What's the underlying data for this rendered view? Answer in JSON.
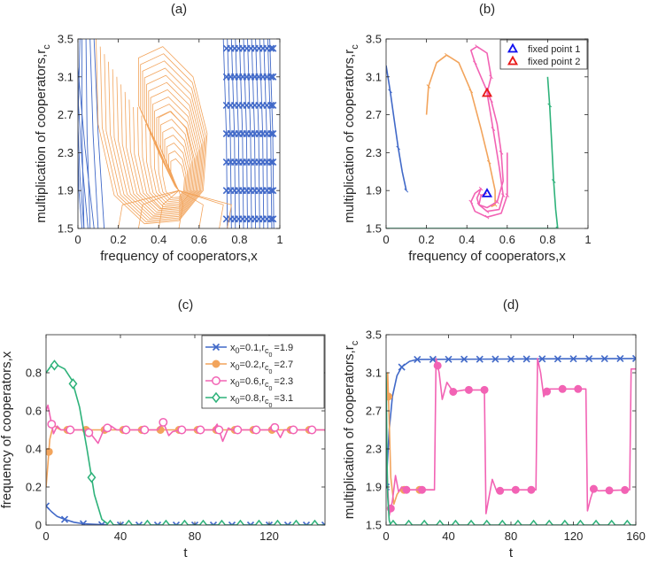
{
  "colors": {
    "blue": "#4169c8",
    "orange": "#f2a45c",
    "pink": "#f263b4",
    "green": "#2eb27a",
    "fp1": "#1010f0",
    "fp2": "#e81818"
  },
  "chart_data": [
    {
      "id": "a",
      "type": "line",
      "title": "(a)",
      "xlabel": "frequency of cooperators,x",
      "ylabel_main": "multiplication of cooperators,r",
      "ylabel_sub": "c",
      "xlim": [
        0,
        1
      ],
      "ylim": [
        1.5,
        3.5
      ],
      "xticks": [
        "0",
        "0.2",
        "0.4",
        "0.6",
        "0.8",
        "1"
      ],
      "xtick_values": [
        0,
        0.2,
        0.4,
        0.6,
        0.8,
        1
      ],
      "yticks": [
        "1.5",
        "1.9",
        "2.3",
        "2.7",
        "3.1",
        "3.5"
      ],
      "ytick_values": [
        1.5,
        1.9,
        2.3,
        2.7,
        3.1,
        3.5
      ],
      "blue_left_streamlines": [
        [
          0.0,
          3.5,
          0.0,
          2.0
        ],
        [
          0.01,
          3.5,
          0.0,
          1.7
        ],
        [
          0.02,
          3.5,
          0.03,
          1.5
        ],
        [
          0.04,
          3.5,
          0.06,
          1.5
        ],
        [
          0.06,
          3.5,
          0.1,
          1.5
        ],
        [
          0.0,
          3.2,
          0.08,
          1.5
        ],
        [
          0.0,
          2.9,
          0.05,
          1.5
        ],
        [
          0.0,
          2.6,
          0.03,
          1.5
        ],
        [
          0.08,
          3.5,
          0.13,
          1.5
        ],
        [
          0.0,
          2.3,
          0.02,
          1.5
        ]
      ],
      "blue_right_streamlines": [
        0.74,
        0.76,
        0.78,
        0.8,
        0.82,
        0.84,
        0.86,
        0.88,
        0.9,
        0.92,
        0.94,
        0.96,
        0.97
      ],
      "orange_base_loop": [
        [
          0.09,
          3.5
        ],
        [
          0.1,
          2.6
        ],
        [
          0.18,
          1.85
        ],
        [
          0.33,
          1.55
        ],
        [
          0.5,
          1.58
        ],
        [
          0.62,
          1.9
        ],
        [
          0.64,
          2.5
        ],
        [
          0.57,
          3.1
        ],
        [
          0.42,
          3.42
        ],
        [
          0.3,
          3.3
        ],
        [
          0.3,
          2.8
        ],
        [
          0.4,
          2.3
        ],
        [
          0.48,
          1.95
        ],
        [
          0.5,
          1.9
        ]
      ],
      "orange_loop_center": [
        0.5,
        1.9
      ],
      "orange_loop_scales": [
        1.0,
        0.95,
        0.9,
        0.85,
        0.8,
        0.75,
        0.7,
        0.65,
        0.6,
        0.55,
        0.5,
        0.45,
        0.4,
        0.35,
        0.3,
        0.25,
        0.2
      ],
      "orange_bottom_lines": [
        0.2,
        0.3,
        0.4,
        0.5,
        0.6,
        0.7,
        0.74
      ]
    },
    {
      "id": "b",
      "type": "line",
      "title": "(b)",
      "xlabel": "frequency of cooperators,x",
      "ylabel_main": "multiplication of cooperators,r",
      "ylabel_sub": "c",
      "xlim": [
        0,
        1
      ],
      "ylim": [
        1.5,
        3.5
      ],
      "xticks": [
        "0",
        "0.2",
        "0.4",
        "0.6",
        "0.8",
        "1"
      ],
      "xtick_values": [
        0,
        0.2,
        0.4,
        0.6,
        0.8,
        1
      ],
      "yticks": [
        "1.5",
        "1.9",
        "2.3",
        "2.7",
        "3.1",
        "3.5"
      ],
      "ytick_values": [
        1.5,
        1.9,
        2.3,
        2.7,
        3.1,
        3.5
      ],
      "series": [
        {
          "color": "blue",
          "points": [
            [
              0.0,
              3.22
            ],
            [
              0.02,
              2.95
            ],
            [
              0.04,
              2.65
            ],
            [
              0.06,
              2.35
            ],
            [
              0.08,
              2.1
            ],
            [
              0.1,
              1.9
            ]
          ]
        },
        {
          "color": "orange",
          "points": [
            [
              0.2,
              2.7
            ],
            [
              0.21,
              3.0
            ],
            [
              0.25,
              3.25
            ],
            [
              0.3,
              3.33
            ],
            [
              0.36,
              3.25
            ],
            [
              0.42,
              2.95
            ],
            [
              0.47,
              2.55
            ],
            [
              0.51,
              2.2
            ],
            [
              0.54,
              1.9
            ],
            [
              0.54,
              1.75
            ],
            [
              0.52,
              1.73
            ]
          ]
        },
        {
          "color": "pink",
          "points": [
            [
              0.6,
              2.3
            ],
            [
              0.6,
              1.85
            ],
            [
              0.57,
              1.66
            ],
            [
              0.5,
              1.62
            ],
            [
              0.44,
              1.68
            ],
            [
              0.42,
              1.78
            ],
            [
              0.44,
              1.87
            ],
            [
              0.47,
              1.92
            ],
            [
              0.45,
              1.82
            ],
            [
              0.46,
              1.75
            ],
            [
              0.5,
              1.72
            ],
            [
              0.55,
              1.78
            ],
            [
              0.58,
              2.0
            ],
            [
              0.57,
              2.3
            ],
            [
              0.55,
              2.6
            ],
            [
              0.52,
              2.85
            ],
            [
              0.48,
              3.05
            ],
            [
              0.44,
              3.25
            ],
            [
              0.42,
              3.38
            ],
            [
              0.45,
              3.42
            ],
            [
              0.5,
              3.35
            ],
            [
              0.52,
              3.1
            ],
            [
              0.5,
              2.93
            ]
          ]
        },
        {
          "color": "pink",
          "points": [
            [
              0.5,
              2.93
            ],
            [
              0.53,
              2.55
            ],
            [
              0.56,
              2.15
            ],
            [
              0.58,
              1.85
            ],
            [
              0.56,
              1.7
            ],
            [
              0.5,
              1.68
            ],
            [
              0.46,
              1.75
            ],
            [
              0.47,
              1.85
            ],
            [
              0.5,
              1.87
            ]
          ]
        },
        {
          "color": "green",
          "points": [
            [
              0.8,
              3.1
            ],
            [
              0.81,
              2.8
            ],
            [
              0.82,
              2.4
            ],
            [
              0.83,
              2.0
            ],
            [
              0.84,
              1.7
            ],
            [
              0.85,
              1.5
            ]
          ]
        },
        {
          "color": "green",
          "points": [
            [
              0.0,
              1.5
            ],
            [
              0.85,
              1.5
            ]
          ]
        }
      ],
      "fixed_points": [
        {
          "label": "fixed point 1",
          "x": 0.5,
          "y": 1.87,
          "color": "fp1"
        },
        {
          "label": "fixed point 2",
          "x": 0.5,
          "y": 2.93,
          "color": "fp2"
        }
      ],
      "legend_position": "top-right"
    },
    {
      "id": "c",
      "type": "line",
      "title": "(c)",
      "xlabel": "t",
      "ylabel_main": "frequency of cooperators,x",
      "ylabel_sub": "",
      "xlim": [
        0,
        150
      ],
      "ylim": [
        0,
        1
      ],
      "xticks": [
        "0",
        "40",
        "80",
        "120"
      ],
      "xtick_values": [
        0,
        40,
        80,
        120
      ],
      "yticks": [
        "0",
        "0.2",
        "0.4",
        "0.6",
        "0.8"
      ],
      "ytick_values": [
        0,
        0.2,
        0.4,
        0.6,
        0.8
      ],
      "legend_position": "top-right",
      "series": [
        {
          "name": {
            "x0": "0.1",
            "rc0": "1.9"
          },
          "color": "blue",
          "marker": "x",
          "points": [
            [
              0,
              0.1
            ],
            [
              3,
              0.07
            ],
            [
              6,
              0.045
            ],
            [
              10,
              0.03
            ],
            [
              15,
              0.015
            ],
            [
              20,
              0.007
            ],
            [
              30,
              0.002
            ],
            [
              40,
              0
            ],
            [
              150,
              0
            ]
          ]
        },
        {
          "name": {
            "x0": "0.2",
            "rc0": "2.7"
          },
          "color": "orange",
          "marker": "o-filled",
          "points": [
            [
              0,
              0.2
            ],
            [
              1,
              0.32
            ],
            [
              2,
              0.45
            ],
            [
              4,
              0.53
            ],
            [
              6,
              0.51
            ],
            [
              8,
              0.5
            ],
            [
              150,
              0.5
            ]
          ]
        },
        {
          "name": {
            "x0": "0.6",
            "rc0": "2.3"
          },
          "color": "pink",
          "marker": "o",
          "points": [
            [
              0,
              0.6
            ],
            [
              1,
              0.63
            ],
            [
              2,
              0.58
            ],
            [
              4,
              0.48
            ],
            [
              6,
              0.52
            ],
            [
              8,
              0.5
            ],
            [
              20,
              0.5
            ],
            [
              24,
              0.48
            ],
            [
              28,
              0.43
            ],
            [
              31,
              0.5
            ],
            [
              35,
              0.52
            ],
            [
              38,
              0.5
            ],
            [
              50,
              0.5
            ],
            [
              60,
              0.5
            ],
            [
              63,
              0.54
            ],
            [
              66,
              0.47
            ],
            [
              68,
              0.49
            ],
            [
              72,
              0.5
            ],
            [
              90,
              0.5
            ],
            [
              92,
              0.53
            ],
            [
              95,
              0.44
            ],
            [
              98,
              0.51
            ],
            [
              100,
              0.5
            ],
            [
              120,
              0.5
            ],
            [
              122,
              0.53
            ],
            [
              126,
              0.46
            ],
            [
              128,
              0.5
            ],
            [
              150,
              0.5
            ],
            [
              152,
              0.4
            ]
          ]
        },
        {
          "name": {
            "x0": "0.8",
            "rc0": "3.1"
          },
          "color": "green",
          "marker": "d",
          "points": [
            [
              0,
              0.8
            ],
            [
              3,
              0.84
            ],
            [
              6,
              0.84
            ],
            [
              10,
              0.82
            ],
            [
              14,
              0.76
            ],
            [
              18,
              0.62
            ],
            [
              22,
              0.4
            ],
            [
              26,
              0.16
            ],
            [
              30,
              0.03
            ],
            [
              34,
              0
            ],
            [
              150,
              0
            ]
          ]
        }
      ],
      "legend_symbols": {
        "x": "x",
        "r": "r",
        "c": "c",
        "zero": "0",
        "eq": "=",
        "comma": ","
      }
    },
    {
      "id": "d",
      "type": "line",
      "title": "(d)",
      "xlabel": "t",
      "ylabel_main": "multiplication of cooperators,r",
      "ylabel_sub": "c",
      "xlim": [
        0,
        160
      ],
      "ylim": [
        1.5,
        3.5
      ],
      "xticks": [
        "0",
        "40",
        "80",
        "120",
        "160"
      ],
      "xtick_values": [
        0,
        40,
        80,
        120,
        160
      ],
      "yticks": [
        "1.5",
        "1.9",
        "2.3",
        "2.7",
        "3.1",
        "3.5"
      ],
      "ytick_values": [
        1.5,
        1.9,
        2.3,
        2.7,
        3.1,
        3.5
      ],
      "series": [
        {
          "color": "blue",
          "marker": "x",
          "points": [
            [
              0,
              1.9
            ],
            [
              2,
              2.5
            ],
            [
              4,
              2.85
            ],
            [
              7,
              3.07
            ],
            [
              10,
              3.16
            ],
            [
              15,
              3.22
            ],
            [
              20,
              3.24
            ],
            [
              160,
              3.25
            ]
          ]
        },
        {
          "color": "orange",
          "marker": "o-filled",
          "points": [
            [
              0,
              2.7
            ],
            [
              1,
              3.1
            ],
            [
              2,
              2.6
            ],
            [
              3,
              2.0
            ],
            [
              5,
              1.72
            ],
            [
              7,
              1.82
            ],
            [
              9,
              1.87
            ],
            [
              30,
              1.87
            ]
          ]
        },
        {
          "color": "pink",
          "marker": "o-filled",
          "points": [
            [
              0,
              2.3
            ],
            [
              1,
              1.9
            ],
            [
              2,
              1.6
            ],
            [
              4,
              1.75
            ],
            [
              6,
              2.02
            ],
            [
              8,
              1.85
            ],
            [
              10,
              1.9
            ],
            [
              12,
              1.87
            ],
            [
              31,
              1.87
            ],
            [
              32,
              3.25
            ],
            [
              34,
              3.1
            ],
            [
              36,
              2.82
            ],
            [
              39,
              3.0
            ],
            [
              43,
              2.9
            ],
            [
              50,
              2.92
            ],
            [
              63,
              2.92
            ],
            [
              64,
              1.62
            ],
            [
              66,
              1.8
            ],
            [
              68,
              1.98
            ],
            [
              71,
              1.85
            ],
            [
              75,
              1.87
            ],
            [
              96,
              1.87
            ],
            [
              97,
              3.25
            ],
            [
              99,
              3.1
            ],
            [
              101,
              2.85
            ],
            [
              104,
              2.93
            ],
            [
              128,
              2.93
            ],
            [
              129,
              1.65
            ],
            [
              131,
              1.78
            ],
            [
              133,
              1.88
            ],
            [
              136,
              1.86
            ],
            [
              156,
              1.87
            ],
            [
              157,
              3.14
            ],
            [
              160,
              3.14
            ]
          ]
        },
        {
          "color": "green",
          "marker": "d",
          "points": [
            [
              0,
              3.1
            ],
            [
              0.5,
              2.3
            ],
            [
              1,
              1.8
            ],
            [
              2,
              1.55
            ],
            [
              3,
              1.5
            ],
            [
              160,
              1.5
            ]
          ]
        }
      ]
    }
  ]
}
